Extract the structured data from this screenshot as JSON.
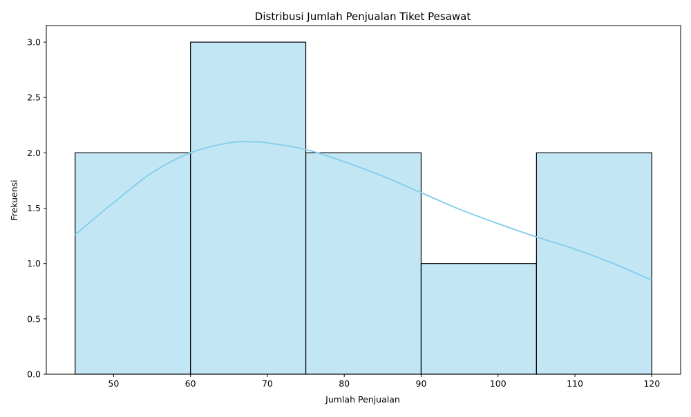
{
  "chart_data": {
    "type": "bar",
    "title": "Distribusi Jumlah Penjualan Tiket Pesawat",
    "xlabel": "Jumlah Penjualan",
    "ylabel": "Frekuensi",
    "bins": [
      {
        "start": 45,
        "end": 60,
        "count": 2
      },
      {
        "start": 60,
        "end": 75,
        "count": 3
      },
      {
        "start": 75,
        "end": 90,
        "count": 2
      },
      {
        "start": 90,
        "end": 105,
        "count": 1
      },
      {
        "start": 105,
        "end": 120,
        "count": 2
      }
    ],
    "kde": {
      "x": [
        45,
        50,
        55,
        60,
        65,
        68,
        70,
        75,
        80,
        85,
        90,
        95,
        100,
        105,
        110,
        115,
        120
      ],
      "y": [
        1.26,
        1.55,
        1.82,
        2.0,
        2.09,
        2.1,
        2.09,
        2.03,
        1.92,
        1.79,
        1.64,
        1.49,
        1.36,
        1.24,
        1.13,
        1.0,
        0.85
      ]
    },
    "xlim": [
      41.25,
      123.75
    ],
    "ylim": [
      0,
      3.15
    ],
    "xticks": [
      50,
      60,
      70,
      80,
      90,
      100,
      110,
      120
    ],
    "yticks": [
      0.0,
      0.5,
      1.0,
      1.5,
      2.0,
      2.5,
      3.0
    ],
    "xtick_labels": [
      "50",
      "60",
      "70",
      "80",
      "90",
      "100",
      "110",
      "120"
    ],
    "ytick_labels": [
      "0.0",
      "0.5",
      "1.0",
      "1.5",
      "2.0",
      "2.5",
      "3.0"
    ],
    "grid": false,
    "colors": {
      "bar_fill": "#87CEEB",
      "bar_fill_opacity": 0.5,
      "bar_edge": "#000000",
      "kde_line": "#87CEEB",
      "axes": "#000000"
    }
  }
}
